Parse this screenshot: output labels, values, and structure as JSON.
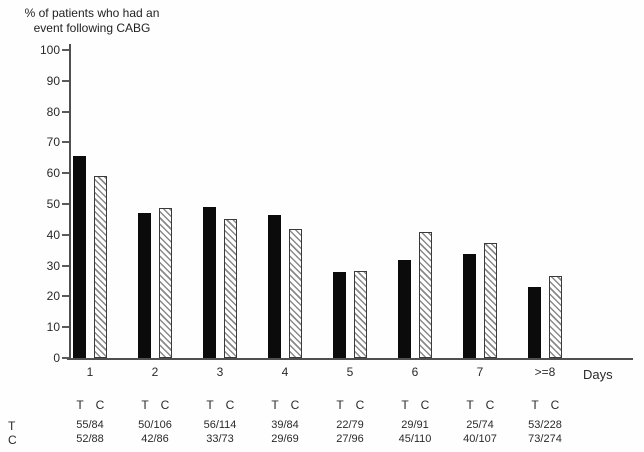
{
  "title": {
    "line1": "% of patients who had an",
    "line2": "event following CABG"
  },
  "chart_data": {
    "type": "bar",
    "title": "% of patients who had an event following CABG",
    "xlabel": "Days",
    "ylabel": "% of patients who had an event following CABG",
    "ylim": [
      0,
      100
    ],
    "yticks": [
      0,
      10,
      20,
      30,
      40,
      50,
      60,
      70,
      80,
      90,
      100
    ],
    "grid": "off",
    "legend_position": "none",
    "categories": [
      "1",
      "2",
      "3",
      "4",
      "5",
      "6",
      "7",
      ">=8"
    ],
    "series": [
      {
        "name": "T",
        "style": "solid-black",
        "values": [
          65.5,
          47.2,
          49.1,
          46.4,
          27.8,
          31.9,
          33.8,
          23.2
        ],
        "fractions": [
          "55/84",
          "50/106",
          "56/114",
          "39/84",
          "22/79",
          "29/91",
          "25/74",
          "53/228"
        ]
      },
      {
        "name": "C",
        "style": "hatched-diagonal",
        "values": [
          59.1,
          48.8,
          45.2,
          42.0,
          28.1,
          40.9,
          37.4,
          26.6
        ],
        "fractions": [
          "52/88",
          "42/86",
          "33/73",
          "29/69",
          "27/96",
          "45/110",
          "40/107",
          "73/274"
        ]
      }
    ]
  },
  "table": {
    "row_labels": [
      "T",
      "C"
    ],
    "column_header": [
      "T",
      "C"
    ]
  },
  "colors": {
    "bar_t": "#0b0b0b",
    "bar_c_hatch": "#8a8a8a",
    "axis": "#4f4f4f",
    "text": "#222222",
    "background": "#fefefe"
  }
}
